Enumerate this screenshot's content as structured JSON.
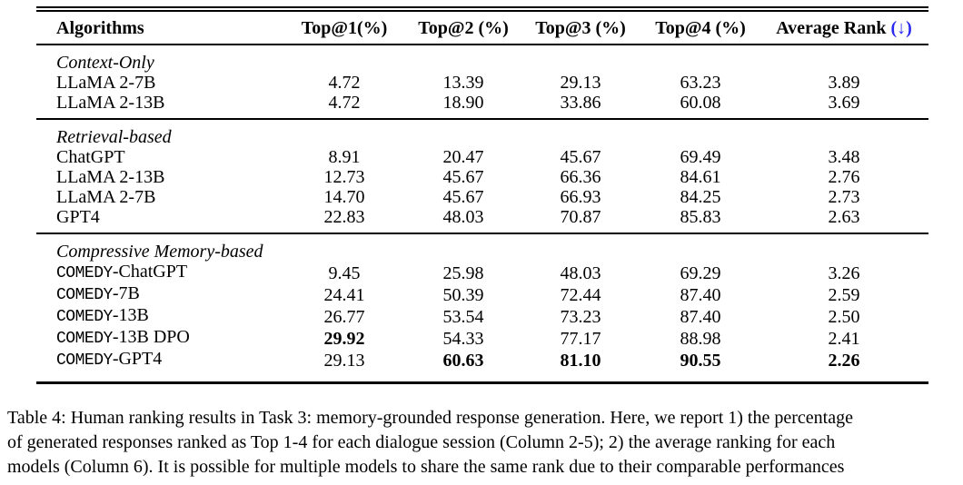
{
  "colors": {
    "rank_arrow_blue": "#2a2af0",
    "text": "#000000",
    "background": "#ffffff"
  },
  "table": {
    "headers": [
      {
        "label": "Algorithms"
      },
      {
        "label": "Top@1(%)"
      },
      {
        "label": "Top@2 (%)"
      },
      {
        "label": "Top@3 (%)"
      },
      {
        "label": "Top@4 (%)"
      },
      {
        "label": "Average Rank ",
        "suffix": "(↓)"
      }
    ],
    "sections": [
      {
        "label": "Context-Only",
        "rows": [
          {
            "algorithm": "LLaMA 2-7B",
            "values": [
              "4.72",
              "13.39",
              "29.13",
              "63.23",
              "3.89"
            ],
            "bold": []
          },
          {
            "algorithm": "LLaMA 2-13B",
            "values": [
              "4.72",
              "18.90",
              "33.86",
              "60.08",
              "3.69"
            ],
            "bold": []
          }
        ]
      },
      {
        "label": "Retrieval-based",
        "rows": [
          {
            "algorithm": "ChatGPT",
            "values": [
              "8.91",
              "20.47",
              "45.67",
              "69.49",
              "3.48"
            ],
            "bold": []
          },
          {
            "algorithm": "LLaMA 2-13B",
            "values": [
              "12.73",
              "45.67",
              "66.36",
              "84.61",
              "2.76"
            ],
            "bold": []
          },
          {
            "algorithm": "LLaMA 2-7B",
            "values": [
              "14.70",
              "45.67",
              "66.93",
              "84.25",
              "2.73"
            ],
            "bold": []
          },
          {
            "algorithm": "GPT4",
            "values": [
              "22.83",
              "48.03",
              "70.87",
              "85.83",
              "2.63"
            ],
            "bold": []
          }
        ]
      },
      {
        "label": "Compressive Memory-based",
        "rows": [
          {
            "algorithm_mono": "COMEDY",
            "algorithm": "-ChatGPT",
            "values": [
              "9.45",
              "25.98",
              "48.03",
              "69.29",
              "3.26"
            ],
            "bold": []
          },
          {
            "algorithm_mono": "COMEDY",
            "algorithm": "-7B",
            "values": [
              "24.41",
              "50.39",
              "72.44",
              "87.40",
              "2.59"
            ],
            "bold": []
          },
          {
            "algorithm_mono": "COMEDY",
            "algorithm": "-13B",
            "values": [
              "26.77",
              "53.54",
              "73.23",
              "87.40",
              "2.50"
            ],
            "bold": []
          },
          {
            "algorithm_mono": "COMEDY",
            "algorithm": "-13B DPO",
            "values": [
              "29.92",
              "54.33",
              "77.17",
              "88.98",
              "2.41"
            ],
            "bold": [
              0
            ]
          },
          {
            "algorithm_mono": "COMEDY",
            "algorithm": "-GPT4",
            "values": [
              "29.13",
              "60.63",
              "81.10",
              "90.55",
              "2.26"
            ],
            "bold": [
              1,
              2,
              3,
              4
            ]
          }
        ]
      }
    ]
  },
  "caption": {
    "lines": [
      "Table 4: Human ranking results in Task 3: memory-grounded response generation. Here, we report 1) the percentage",
      "of generated responses ranked as Top 1-4 for each dialogue session (Column 2-5); 2) the average ranking for each",
      "models (Column 6). It is possible for multiple models to share the same rank due to their comparable performances"
    ]
  }
}
